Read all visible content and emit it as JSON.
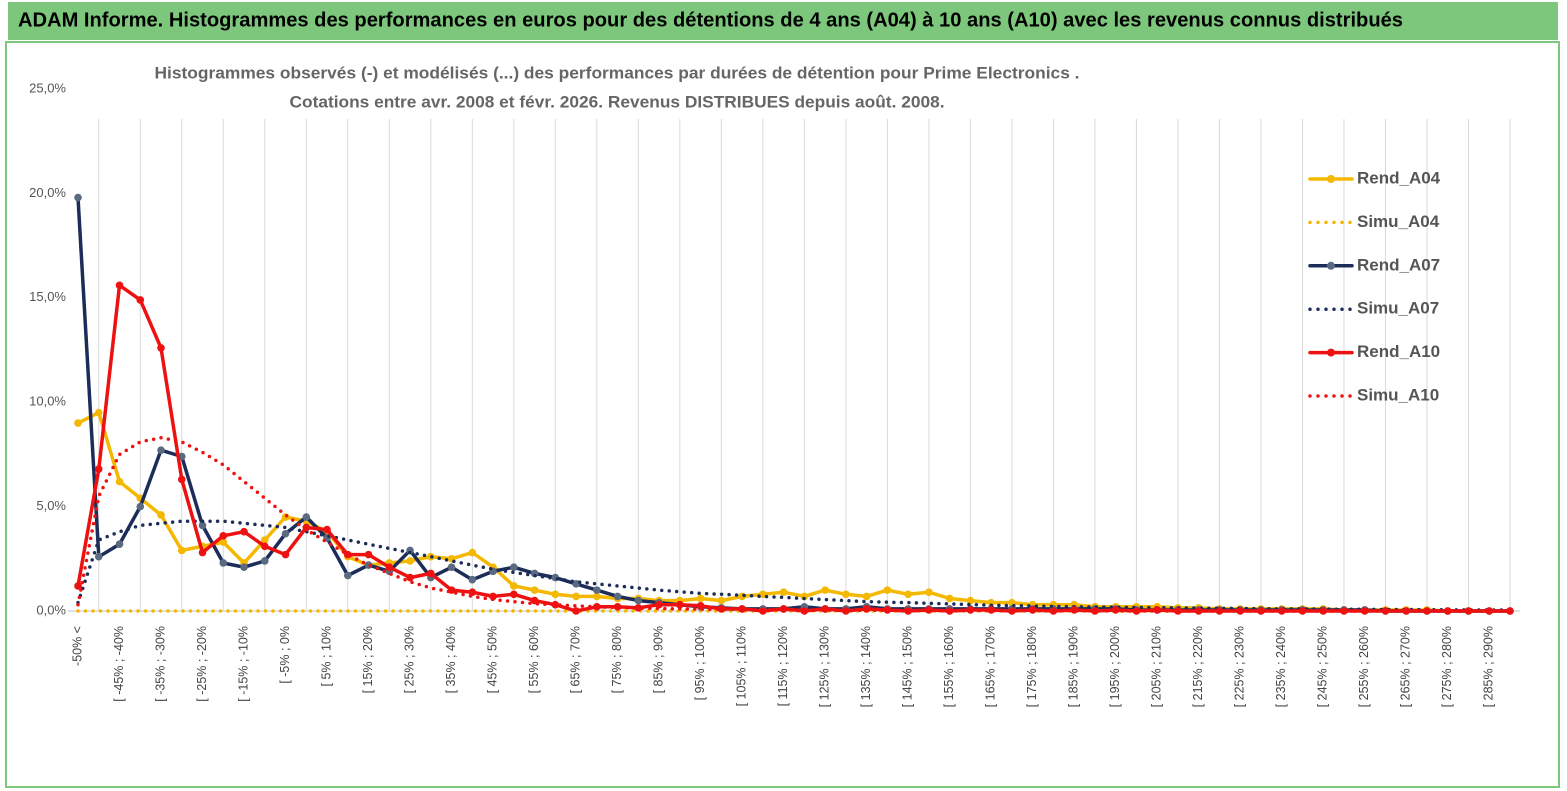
{
  "chart_data": {
    "type": "line",
    "header": "ADAM Informe. Histogrammes des performances en euros pour des détentions de 4 ans (A04) à 10 ans (A10) avec les revenus connus distribués",
    "title": [
      "Histogrammes observés (-) et modélisés (...) des performances par durées de détention pour Prime Electronics .",
      "Cotations entre avr. 2008 et févr. 2026. Revenus DISTRIBUES depuis août. 2008."
    ],
    "categories": [
      "-50% <",
      null,
      "[ -45% ; -40%",
      null,
      "[ -35% ; -30%",
      null,
      "[ -25% ; -20%",
      null,
      "[ -15% ; -10%",
      null,
      "[ -5% ; 0%",
      null,
      "[ 5% ; 10%",
      null,
      "[ 15% ; 20%",
      null,
      "[ 25% ; 30%",
      null,
      "[ 35% ; 40%",
      null,
      "[ 45% ; 50%",
      null,
      "[ 55% ; 60%",
      null,
      "[ 65% ; 70%",
      null,
      "[ 75% ; 80%",
      null,
      "[ 85% ; 90%",
      null,
      "[ 95% ; 100%",
      null,
      "[ 105% ; 110%",
      null,
      "[ 115% ; 120%",
      null,
      "[ 125% ; 130%",
      null,
      "[ 135% ; 140%",
      null,
      "[ 145% ; 150%",
      null,
      "[ 155% ; 160%",
      null,
      "[ 165% ; 170%",
      null,
      "[ 175% ; 180%",
      null,
      "[ 185% ; 190%",
      null,
      "[ 195% ; 200%",
      null,
      "[ 205% ; 210%",
      null,
      "[ 215% ; 220%",
      null,
      "[ 225% ; 230%",
      null,
      "[ 235% ; 240%",
      null,
      "[ 245% ; 250%",
      null,
      "[ 255% ; 260%",
      null,
      "[ 265% ; 270%",
      null,
      "[ 275% ; 280%",
      null,
      "[ 285% ; 290%",
      null
    ],
    "series": [
      {
        "name": "Rend_A04",
        "color": "#f5b800",
        "style": "solid",
        "values": [
          9.0,
          9.5,
          6.2,
          5.4,
          4.6,
          2.9,
          3.1,
          3.3,
          2.3,
          3.4,
          4.5,
          4.3,
          3.8,
          2.6,
          2.2,
          2.3,
          2.4,
          2.6,
          2.5,
          2.8,
          2.1,
          1.2,
          1.0,
          0.8,
          0.7,
          0.7,
          0.6,
          0.6,
          0.5,
          0.5,
          0.6,
          0.5,
          0.7,
          0.8,
          0.9,
          0.7,
          1.0,
          0.8,
          0.7,
          1.0,
          0.8,
          0.9,
          0.6,
          0.5,
          0.4,
          0.4,
          0.3,
          0.3,
          0.3,
          0.2,
          0.2,
          0.2,
          0.2,
          0.15,
          0.15,
          0.1,
          0.1,
          0.1,
          0.1,
          0.1,
          0.1,
          0.05,
          0.05,
          0.05,
          0.05,
          0.05,
          0,
          0,
          0,
          0
        ]
      },
      {
        "name": "Simu_A04",
        "color": "#f5b800",
        "style": "dotted",
        "values": [
          0,
          0,
          0,
          0,
          0,
          0,
          0,
          0,
          0,
          0,
          0,
          0,
          0,
          0,
          0,
          0,
          0,
          0,
          0,
          0,
          0,
          0,
          0,
          0,
          0,
          0,
          0,
          0,
          0,
          0,
          0,
          0,
          0,
          0,
          0,
          0,
          0,
          0,
          0,
          0,
          0,
          0,
          0,
          0,
          0,
          0,
          0,
          0,
          0,
          0,
          0,
          0,
          0,
          0,
          0,
          0,
          0,
          0,
          0,
          0,
          0,
          0,
          0,
          0,
          0,
          0,
          0,
          0,
          0,
          0
        ]
      },
      {
        "name": "Rend_A07",
        "color": "#1c2d5a",
        "marker": "#5a6a80",
        "style": "solid",
        "values": [
          19.8,
          2.6,
          3.2,
          5.0,
          7.7,
          7.4,
          4.1,
          2.3,
          2.1,
          2.4,
          3.7,
          4.5,
          3.5,
          1.7,
          2.2,
          1.9,
          2.9,
          1.6,
          2.1,
          1.5,
          1.9,
          2.1,
          1.8,
          1.6,
          1.3,
          1.0,
          0.7,
          0.5,
          0.4,
          0.3,
          0.2,
          0.15,
          0.1,
          0.1,
          0.1,
          0.2,
          0.1,
          0.1,
          0.2,
          0.1,
          0.1,
          0.1,
          0.1,
          0.1,
          0.1,
          0.1,
          0.1,
          0.1,
          0.1,
          0.1,
          0.1,
          0.05,
          0.05,
          0.05,
          0.05,
          0.05,
          0.05,
          0.05,
          0.05,
          0.05,
          0.05,
          0.05,
          0.05,
          0,
          0,
          0,
          0,
          0,
          0,
          0
        ]
      },
      {
        "name": "Simu_A07",
        "color": "#1c2d5a",
        "style": "dotted",
        "values": [
          0.4,
          3.4,
          3.8,
          4.1,
          4.2,
          4.3,
          4.3,
          4.3,
          4.2,
          4.1,
          4.0,
          3.8,
          3.6,
          3.4,
          3.2,
          3.0,
          2.8,
          2.6,
          2.4,
          2.2,
          2.0,
          1.85,
          1.7,
          1.55,
          1.4,
          1.3,
          1.2,
          1.1,
          1.0,
          0.92,
          0.85,
          0.8,
          0.75,
          0.7,
          0.65,
          0.6,
          0.55,
          0.5,
          0.45,
          0.42,
          0.4,
          0.37,
          0.34,
          0.31,
          0.28,
          0.26,
          0.24,
          0.22,
          0.2,
          0.19,
          0.18,
          0.17,
          0.16,
          0.15,
          0.14,
          0.13,
          0.12,
          0.11,
          0.1,
          0.1,
          0.09,
          0.08,
          0.08,
          0.07,
          0.07,
          0.06,
          0.06,
          0.05,
          0.05,
          0.05
        ]
      },
      {
        "name": "Rend_A10",
        "color": "#ee1111",
        "style": "solid",
        "values": [
          1.2,
          6.8,
          15.6,
          14.9,
          12.6,
          6.3,
          2.8,
          3.6,
          3.8,
          3.1,
          2.7,
          4.0,
          3.9,
          2.7,
          2.7,
          2.1,
          1.6,
          1.8,
          1.0,
          0.9,
          0.7,
          0.8,
          0.5,
          0.3,
          0.0,
          0.2,
          0.2,
          0.15,
          0.3,
          0.3,
          0.25,
          0.1,
          0.1,
          0.0,
          0.1,
          0.0,
          0.1,
          0.0,
          0.1,
          0.05,
          0.0,
          0.05,
          0.0,
          0.05,
          0.05,
          0.0,
          0.05,
          0.0,
          0.05,
          0.0,
          0.05,
          0,
          0.05,
          0,
          0,
          0,
          0,
          0,
          0,
          0,
          0,
          0,
          0,
          0,
          0,
          0,
          0,
          0,
          0,
          0
        ]
      },
      {
        "name": "Simu_A10",
        "color": "#ee1111",
        "style": "dotted",
        "values": [
          0.3,
          5.5,
          7.5,
          8.1,
          8.3,
          8.1,
          7.6,
          7.0,
          6.2,
          5.4,
          4.6,
          3.9,
          3.3,
          2.7,
          2.2,
          1.8,
          1.4,
          1.1,
          0.9,
          0.7,
          0.55,
          0.45,
          0.35,
          0.3,
          0.25,
          0.2,
          0.17,
          0.14,
          0.12,
          0.1,
          0.09,
          0.08,
          0.07,
          0.06,
          0.05,
          0.05,
          0.04,
          0.04,
          0.03,
          0.03,
          0.03,
          0.02,
          0.02,
          0.02,
          0.02,
          0.01,
          0.01,
          0.01,
          0.01,
          0.01,
          0,
          0,
          0,
          0,
          0,
          0,
          0,
          0,
          0,
          0,
          0,
          0,
          0,
          0,
          0,
          0,
          0,
          0,
          0,
          0
        ]
      }
    ],
    "ylim": [
      0,
      25
    ],
    "yticks": [
      {
        "value": 0,
        "label": "0,0%"
      },
      {
        "value": 5,
        "label": "5,0%"
      },
      {
        "value": 10,
        "label": "10,0%"
      },
      {
        "value": 15,
        "label": "15,0%"
      },
      {
        "value": 20,
        "label": "20,0%"
      },
      {
        "value": 25,
        "label": "25,0%"
      }
    ],
    "grid": true,
    "legend": "right"
  }
}
